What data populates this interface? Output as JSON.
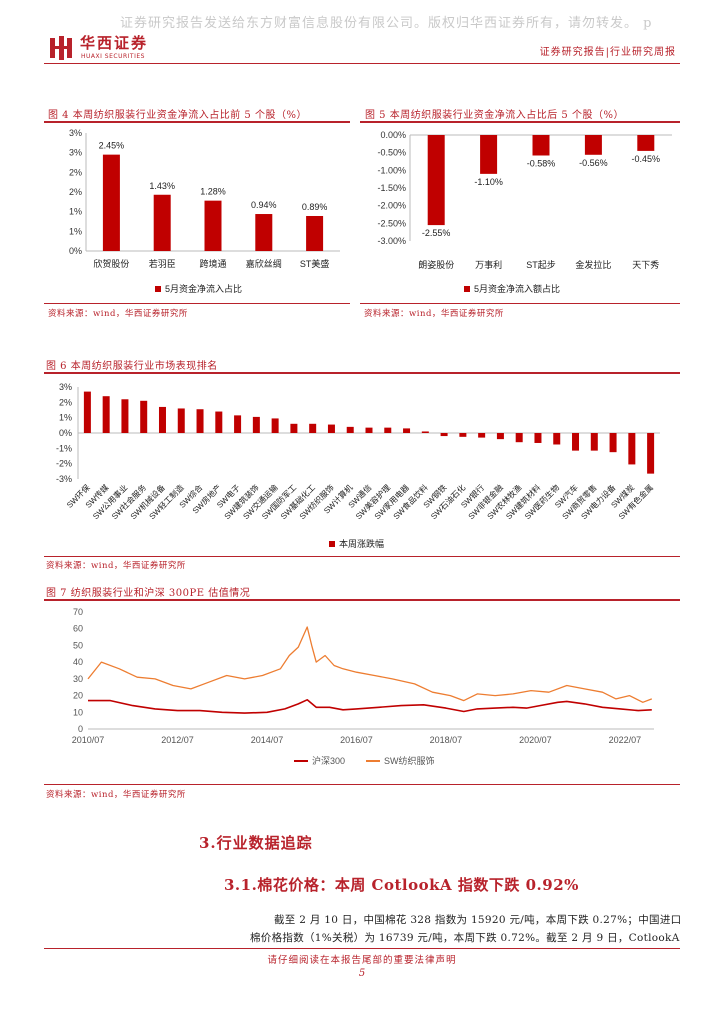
{
  "header": {
    "watermark": "证券研究报告发送给东方财富信息股份有限公司。版权归华西证券所有，请勿转发。 p",
    "logo_cn": "华西证券",
    "logo_en": "HUAXI SECURITIES",
    "report_type": "证券研究报告|行业研究周报"
  },
  "figures": {
    "fig4": {
      "title": "图 4  本周纺织服装行业资金净流入占比前 5 个股（%）",
      "source": "资料来源：wind，华西证券研究所"
    },
    "fig5": {
      "title": "图 5  本周纺织服装行业资金净流入占比后 5 个股（%）",
      "source": "资料来源：wind，华西证券研究所"
    },
    "fig6": {
      "title": "图 6  本周纺织服装行业市场表现排名",
      "source": "资料来源：wind，华西证券研究所"
    },
    "fig7": {
      "title": "图 7  纺织服装行业和沪深 300PE 估值情况",
      "source": "资料来源：wind，华西证券研究所"
    }
  },
  "chart_data": [
    {
      "id": "fig4",
      "type": "bar",
      "categories": [
        "欣贺股份",
        "若羽臣",
        "跨境通",
        "嘉欣丝绸",
        "ST美盛"
      ],
      "values": [
        2.45,
        1.43,
        1.28,
        0.94,
        0.89
      ],
      "data_labels": [
        "2.45%",
        "1.43%",
        "1.28%",
        "0.94%",
        "0.89%"
      ],
      "ylim": [
        0,
        3
      ],
      "yticks": [
        "0%",
        "1%",
        "1%",
        "2%",
        "2%",
        "3%",
        "3%"
      ],
      "legend": "5月资金净流入占比",
      "color": "#c00000"
    },
    {
      "id": "fig5",
      "type": "bar",
      "categories": [
        "朗姿股份",
        "万事利",
        "ST起步",
        "金发拉比",
        "天下秀"
      ],
      "values": [
        -2.55,
        -1.1,
        -0.58,
        -0.56,
        -0.45
      ],
      "data_labels": [
        "-2.55%",
        "-1.10%",
        "-0.58%",
        "-0.56%",
        "-0.45%"
      ],
      "ylim": [
        -3,
        0
      ],
      "yticks": [
        "0.00%",
        "-0.50%",
        "-1.00%",
        "-1.50%",
        "-2.00%",
        "-2.50%",
        "-3.00%"
      ],
      "legend": "5月资金净流入额占比",
      "color": "#c00000"
    },
    {
      "id": "fig6",
      "type": "bar",
      "categories": [
        "SW环保",
        "SW传媒",
        "SW公用事业",
        "SW社会服务",
        "SW机械设备",
        "SW轻工制造",
        "SW综合",
        "SW房地产",
        "SW电子",
        "SW建筑装饰",
        "SW交通运输",
        "SW国防军工",
        "SW基础化工",
        "SW纺织服饰",
        "SW计算机",
        "SW通信",
        "SW美容护理",
        "SW家用电器",
        "SW食品饮料",
        "SW钢铁",
        "SW石油石化",
        "SW银行",
        "SW非银金融",
        "SW农林牧渔",
        "SW建筑材料",
        "SW医药生物",
        "SW汽车",
        "SW商贸零售",
        "SW电力设备",
        "SW煤炭",
        "SW有色金属"
      ],
      "values": [
        2.7,
        2.4,
        2.2,
        2.1,
        1.7,
        1.6,
        1.55,
        1.4,
        1.15,
        1.05,
        0.95,
        0.6,
        0.6,
        0.55,
        0.4,
        0.35,
        0.35,
        0.3,
        0.1,
        -0.2,
        -0.25,
        -0.3,
        -0.4,
        -0.6,
        -0.65,
        -0.75,
        -1.15,
        -1.15,
        -1.25,
        -2.05,
        -2.65
      ],
      "ylim": [
        -3,
        3
      ],
      "yticks": [
        "3%",
        "2%",
        "1%",
        "0%",
        "-1%",
        "-2%",
        "-3%"
      ],
      "legend": "本周涨跌幅",
      "color": "#c00000"
    },
    {
      "id": "fig7",
      "type": "line",
      "x_ticks": [
        "2010/07",
        "2012/07",
        "2014/07",
        "2016/07",
        "2018/07",
        "2020/07",
        "2022/07"
      ],
      "ylim": [
        0,
        70
      ],
      "yticks": [
        "70",
        "60",
        "50",
        "40",
        "30",
        "20",
        "10",
        "0"
      ],
      "series": [
        {
          "name": "沪深300",
          "color": "#c00000",
          "t": [
            2010.5,
            2011.0,
            2011.5,
            2012.0,
            2012.5,
            2013.0,
            2013.5,
            2014.0,
            2014.5,
            2014.9,
            2015.2,
            2015.4,
            2015.6,
            2015.9,
            2016.2,
            2016.5,
            2017.0,
            2017.5,
            2018.0,
            2018.5,
            2018.9,
            2019.2,
            2019.6,
            2020.0,
            2020.3,
            2020.6,
            2021.0,
            2021.2,
            2021.6,
            2022.0,
            2022.4,
            2022.8,
            2023.1
          ],
          "values": [
            17,
            17,
            14,
            12,
            11,
            11,
            10,
            9.5,
            10,
            12,
            15,
            17.5,
            13,
            13,
            11.5,
            12,
            13,
            14,
            14.5,
            12.5,
            10.5,
            12,
            12.5,
            13,
            12.5,
            14,
            16,
            16.5,
            15,
            13,
            12,
            11,
            11.5
          ]
        },
        {
          "name": "SW纺织服饰",
          "color": "#ed7d31",
          "t": [
            2010.5,
            2010.8,
            2011.2,
            2011.6,
            2012.0,
            2012.4,
            2012.8,
            2013.2,
            2013.6,
            2014.0,
            2014.4,
            2014.8,
            2015.0,
            2015.2,
            2015.4,
            2015.5,
            2015.6,
            2015.8,
            2016.0,
            2016.2,
            2016.5,
            2016.9,
            2017.3,
            2017.8,
            2018.2,
            2018.6,
            2018.9,
            2019.2,
            2019.6,
            2020.0,
            2020.4,
            2020.8,
            2021.2,
            2021.6,
            2022.0,
            2022.3,
            2022.6,
            2022.9,
            2023.1
          ],
          "values": [
            30,
            40,
            36,
            31,
            30,
            26,
            24,
            28,
            32,
            30,
            32,
            36,
            44,
            49,
            61,
            50,
            40,
            44,
            38,
            36,
            34,
            32,
            30,
            27,
            22,
            20,
            17,
            21,
            20,
            21,
            23,
            22,
            26,
            24,
            22,
            18,
            20,
            16,
            18
          ]
        }
      ]
    }
  ],
  "section": {
    "h2": "3.行业数据追踪",
    "h3": "3.1.棉花价格：本周 CotlookA 指数下跌 0.92%",
    "para_line1": "截至 2 月 10 日，中国棉花 328 指数为 15920 元/吨，本周下跌 0.27%；中国进口",
    "para_line2": "棉价格指数（1%关税）为 16739 元/吨，本周下跌 0.72%。截至 2 月 9 日，CotlookA"
  },
  "footer": {
    "disclaimer": "请仔细阅读在本报告尾部的重要法律声明",
    "page": "5"
  }
}
